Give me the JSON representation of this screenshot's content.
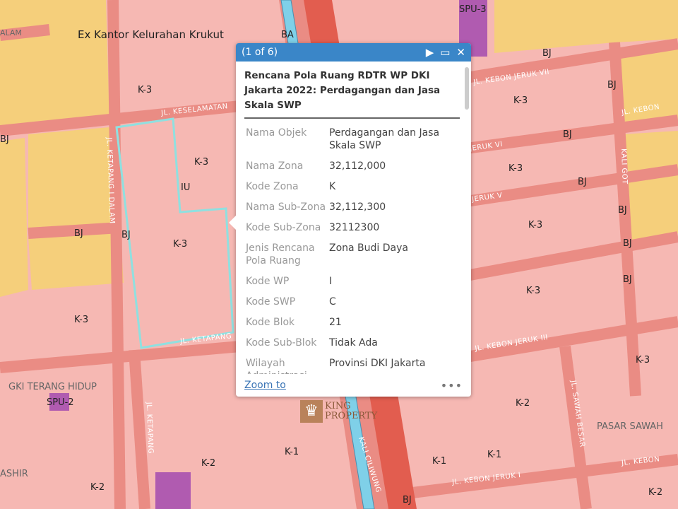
{
  "map": {
    "colors": {
      "commercial_zone": "#f6b8b3",
      "road": "#ea8c84",
      "residential_zone": "#f5cf7b",
      "river": "#7fd0e8",
      "highway": "#e25d4f",
      "facility": "#b05bb0",
      "selected_outline": "#8fe0e0"
    },
    "labels": [
      "Ex Kantor Kelurahan Krukut",
      "K-3",
      "K-3",
      "K-3",
      "K-3",
      "K-3",
      "K-3",
      "K-3",
      "K-3",
      "K-3",
      "K-2",
      "K-2",
      "K-2",
      "K-2",
      "K-1",
      "K-1",
      "K-1",
      "BJ",
      "BJ",
      "BJ",
      "BJ",
      "BJ",
      "BJ",
      "BJ",
      "BJ",
      "BJ",
      "BJ",
      "BJ",
      "BA",
      "IU",
      "SPU-3",
      "SPU-2",
      "GKI TERANG HIDUP",
      "PASAR SAWAH",
      "ASHIR",
      "ALAM"
    ],
    "roads": [
      "JL. KESELAMATAN",
      "JL. KETAPANG",
      "JL. KETAPANG I DALAM",
      "JL. KETAPANG",
      "JL. KEBON",
      "JERUK VI",
      "JERUK V",
      "JL. KEBON JERUK III",
      "JL. KEBON JERUK I",
      "JL. KEBON",
      "KALI GOT",
      "JL. SAWAH BESAR",
      "KALI CILIWUNG",
      "JL. KEBON JERUK VII"
    ]
  },
  "popup": {
    "counter": "(1 of 6)",
    "title": "Rencana Pola Ruang RDTR WP DKI Jakarta 2022: Perdagangan dan Jasa Skala SWP",
    "fields": [
      {
        "key": "Nama Objek",
        "value": "Perdagangan dan Jasa Skala SWP"
      },
      {
        "key": "Nama Zona",
        "value": "32,112,000"
      },
      {
        "key": "Kode Zona",
        "value": "K"
      },
      {
        "key": "Nama Sub-Zona",
        "value": "32,112,300"
      },
      {
        "key": "Kode Sub-Zona",
        "value": "32112300"
      },
      {
        "key": "Jenis Rencana Pola Ruang",
        "value": "Zona Budi Daya"
      },
      {
        "key": "Kode WP",
        "value": "I"
      },
      {
        "key": "Kode SWP",
        "value": "C"
      },
      {
        "key": "Kode Blok",
        "value": "21"
      },
      {
        "key": "Kode Sub-Blok",
        "value": "Tidak Ada"
      },
      {
        "key": "Wilayah Administrasi",
        "value": "Provinsi DKI Jakarta"
      }
    ],
    "zoom_to": "Zoom to",
    "more": "•••",
    "icons": [
      "play-icon",
      "maximize-icon",
      "close-icon"
    ]
  },
  "watermark": {
    "line1": "KING",
    "line2": "PROPERTY"
  }
}
